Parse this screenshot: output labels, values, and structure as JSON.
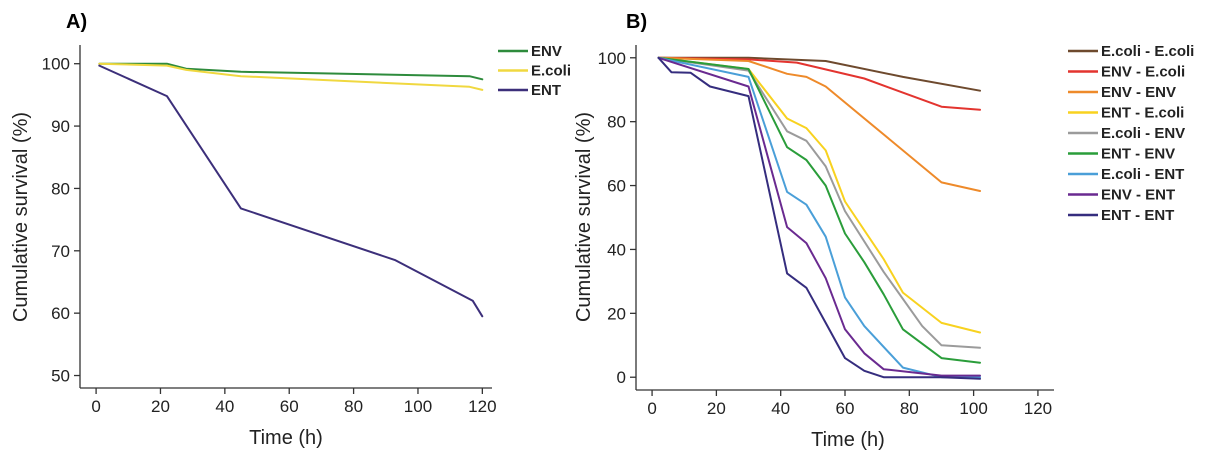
{
  "chart_data": [
    {
      "type": "line",
      "panel_label": "A)",
      "xlabel": "Time (h)",
      "ylabel": "Cumulative survival (%)",
      "xlim": [
        -5,
        123
      ],
      "ylim": [
        48,
        103
      ],
      "xticks": [
        0,
        20,
        40,
        60,
        80,
        100,
        120
      ],
      "yticks": [
        50,
        60,
        70,
        80,
        90,
        100
      ],
      "grid": false,
      "legend_position": "top-right-outside",
      "series": [
        {
          "name": "ENV",
          "color": "#2e8b3c",
          "x": [
            1,
            22,
            28,
            45,
            116,
            120
          ],
          "y": [
            100,
            100,
            99.2,
            98.7,
            98,
            97.5
          ]
        },
        {
          "name": "E.coli",
          "color": "#f0d840",
          "x": [
            1,
            22,
            28,
            45,
            116,
            120
          ],
          "y": [
            100,
            99.7,
            99,
            98,
            96.3,
            95.8
          ]
        },
        {
          "name": "ENT",
          "color": "#3c2f7a",
          "x": [
            1,
            22,
            45,
            93,
            117,
            120
          ],
          "y": [
            99.7,
            94.8,
            76.8,
            68.5,
            62,
            59.5
          ]
        }
      ]
    },
    {
      "type": "line",
      "panel_label": "B)",
      "xlabel": "Time (h)",
      "ylabel": "Cumulative survival (%)",
      "xlim": [
        -5,
        125
      ],
      "ylim": [
        -4,
        104
      ],
      "xticks": [
        0,
        20,
        40,
        60,
        80,
        100,
        120
      ],
      "yticks": [
        0,
        20,
        40,
        60,
        80,
        100
      ],
      "grid": false,
      "legend_position": "top-right-outside",
      "series": [
        {
          "name": "E.coli - E.coli",
          "color": "#6e4a2e",
          "x": [
            2,
            30,
            54,
            78,
            102
          ],
          "y": [
            100,
            100,
            99,
            94,
            89.7
          ]
        },
        {
          "name": "ENV - E.coli",
          "color": "#e3342f",
          "x": [
            2,
            30,
            45,
            66,
            90,
            102
          ],
          "y": [
            100,
            99.5,
            98.5,
            93.5,
            84.7,
            83.7
          ]
        },
        {
          "name": "ENV - ENV",
          "color": "#ee8a2a",
          "x": [
            2,
            30,
            42,
            48,
            54,
            72,
            84,
            90,
            102
          ],
          "y": [
            100,
            99,
            95,
            94,
            91,
            76,
            66,
            61,
            58.3
          ]
        },
        {
          "name": "ENT - E.coli",
          "color": "#f8d21f",
          "x": [
            2,
            30,
            42,
            48,
            54,
            60,
            72,
            78,
            90,
            102
          ],
          "y": [
            100,
            96.5,
            81,
            78,
            71,
            55,
            37,
            26.5,
            17,
            14
          ]
        },
        {
          "name": "E.coli - ENV",
          "color": "#9b9b9b",
          "x": [
            2,
            30,
            42,
            48,
            54,
            60,
            72,
            84,
            90,
            102
          ],
          "y": [
            100,
            96,
            77,
            74,
            66,
            52,
            33,
            16,
            10,
            9.2
          ]
        },
        {
          "name": "ENT - ENV",
          "color": "#2a9d3a",
          "x": [
            2,
            30,
            42,
            48,
            54,
            60,
            66,
            72,
            78,
            90,
            102
          ],
          "y": [
            100,
            96.5,
            72,
            68,
            60,
            45,
            36,
            26,
            15,
            6,
            4.5
          ]
        },
        {
          "name": "E.coli - ENT",
          "color": "#4a9fd8",
          "x": [
            2,
            30,
            42,
            48,
            54,
            60,
            66,
            78,
            90,
            102
          ],
          "y": [
            100,
            94,
            58,
            54,
            44,
            25,
            16,
            3,
            0,
            0
          ]
        },
        {
          "name": "ENV - ENT",
          "color": "#6a2a90",
          "x": [
            2,
            30,
            42,
            48,
            54,
            60,
            66,
            72,
            90,
            102
          ],
          "y": [
            100,
            91,
            47,
            42,
            31,
            15,
            7.5,
            2.5,
            0.5,
            0.5
          ]
        },
        {
          "name": "ENT - ENT",
          "color": "#352d7e",
          "x": [
            2,
            6,
            12,
            18,
            30,
            42,
            48,
            54,
            60,
            66,
            72,
            90,
            102
          ],
          "y": [
            100,
            95.5,
            95.3,
            91,
            88,
            32.5,
            28,
            17,
            6,
            2,
            0,
            0,
            -0.5
          ]
        }
      ]
    }
  ]
}
